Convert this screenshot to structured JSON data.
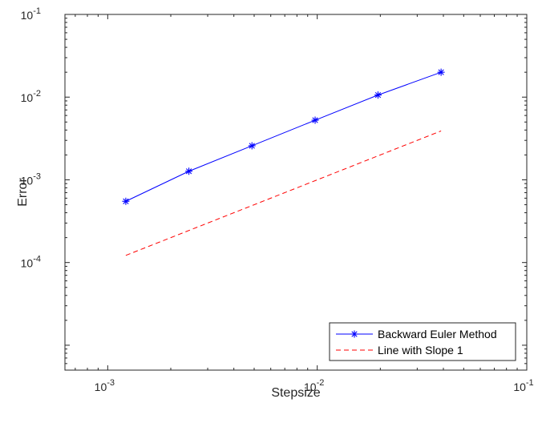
{
  "chart_data": {
    "type": "line",
    "xscale": "log",
    "yscale": "log",
    "xlabel": "Stepsize",
    "ylabel": "Error",
    "xlim": [
      0.000625,
      0.1
    ],
    "ylim": [
      5e-06,
      0.1
    ],
    "x_ticks": [
      {
        "value": 0.001,
        "base": "10",
        "exp": "-3"
      },
      {
        "value": 0.01,
        "base": "10",
        "exp": "-2"
      },
      {
        "value": 0.1,
        "base": "10",
        "exp": "-1"
      }
    ],
    "y_ticks": [
      {
        "value": 0.0001,
        "base": "10",
        "exp": "-4"
      },
      {
        "value": 0.001,
        "base": "10",
        "exp": "-3"
      },
      {
        "value": 0.01,
        "base": "10",
        "exp": "-2"
      },
      {
        "value": 0.1,
        "base": "10",
        "exp": "-1"
      }
    ],
    "grid": false,
    "legend_position": "bottom-right",
    "series": [
      {
        "name": "Backward Euler Method",
        "color": "#0000ff",
        "line_style": "solid",
        "marker": "asterisk",
        "x": [
          0.00122,
          0.00244,
          0.00488,
          0.00977,
          0.0195,
          0.039
        ],
        "y": [
          0.00055,
          0.00127,
          0.00258,
          0.00526,
          0.0106,
          0.02
        ]
      },
      {
        "name": "Line with Slope 1",
        "color": "#ff0000",
        "line_style": "dashed",
        "marker": "none",
        "x": [
          0.00122,
          0.039
        ],
        "y": [
          0.000122,
          0.0039
        ]
      }
    ]
  }
}
